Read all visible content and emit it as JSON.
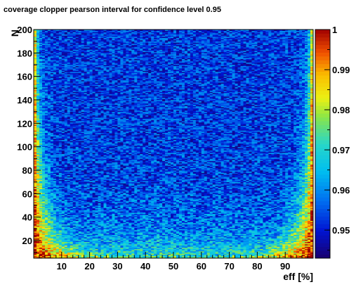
{
  "chart_data": {
    "type": "heatmap",
    "title": "coverage clopper pearson interval for confidence level 0.95",
    "xlabel": "eff [%]",
    "ylabel": "N",
    "xlim": [
      0,
      100
    ],
    "ylim": [
      5,
      200
    ],
    "x_ticks": [
      10,
      20,
      30,
      40,
      50,
      60,
      70,
      80,
      90
    ],
    "y_ticks": [
      20,
      40,
      60,
      80,
      100,
      120,
      140,
      160,
      180,
      200
    ],
    "z_range": [
      0.943,
      1.0
    ],
    "z_ticks": [
      0.95,
      0.96,
      0.97,
      0.98,
      0.99,
      1
    ],
    "colormap": "rainbow (dark blue → cyan → yellow → red)",
    "grid": false,
    "colorbar_position": "right",
    "cells_note": "Coverage is high (0.97–1.0, yellow/red) near eff=0% and eff=100% and at small N, and noisy around 0.95–0.965 (blue/cyan) at central efficiencies for large N."
  }
}
